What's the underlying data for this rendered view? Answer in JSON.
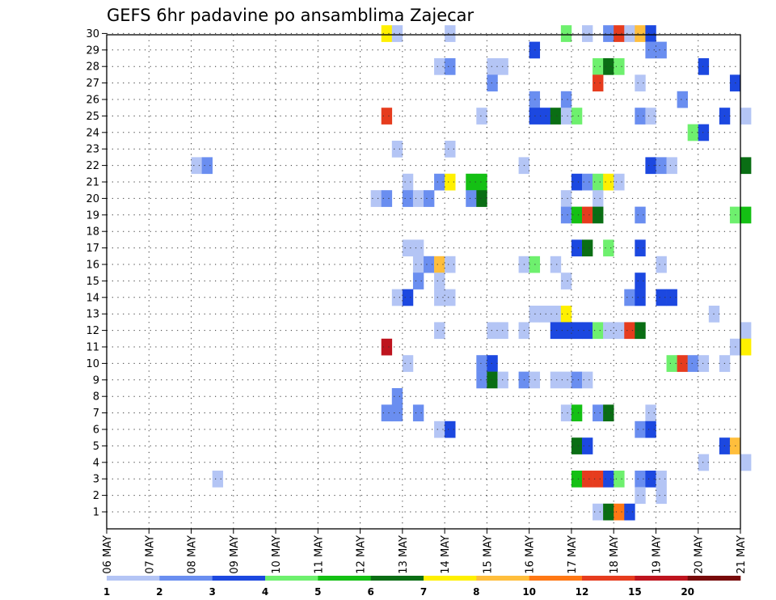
{
  "chart_data": {
    "type": "heatmap",
    "title": "GEFS 6hr padavine po ansamblima Zajecar",
    "x_tick_labels": [
      "06 MAY",
      "07 MAY",
      "08 MAY",
      "09 MAY",
      "10 MAY",
      "11 MAY",
      "12 MAY",
      "13 MAY",
      "14 MAY",
      "15 MAY",
      "16 MAY",
      "17 MAY",
      "18 MAY",
      "19 MAY",
      "20 MAY",
      "21 MAY"
    ],
    "y_tick_labels": [
      "1",
      "2",
      "3",
      "4",
      "5",
      "6",
      "7",
      "8",
      "9",
      "10",
      "11",
      "12",
      "13",
      "14",
      "15",
      "16",
      "17",
      "18",
      "19",
      "20",
      "21",
      "22",
      "23",
      "24",
      "25",
      "26",
      "27",
      "28",
      "29",
      "30"
    ],
    "x_range_days": [
      0,
      15
    ],
    "step_hours": 6,
    "grid": true,
    "colorbar": {
      "labels": [
        "1",
        "2",
        "3",
        "4",
        "5",
        "6",
        "7",
        "8",
        "10",
        "12",
        "15",
        "20"
      ],
      "colors": [
        "#b4c5f5",
        "#6a8ef0",
        "#1c48e0",
        "#6ef06e",
        "#14c014",
        "#0a6e14",
        "#fff000",
        "#ffbe3c",
        "#ff7814",
        "#e63c1e",
        "#be141e",
        "#780a0a"
      ]
    },
    "cells": [
      [
        30,
        26,
        6
      ],
      [
        30,
        27,
        0
      ],
      [
        30,
        32,
        0
      ],
      [
        30,
        43,
        3
      ],
      [
        30,
        45,
        0
      ],
      [
        30,
        47,
        1
      ],
      [
        30,
        48,
        9
      ],
      [
        30,
        49,
        0
      ],
      [
        30,
        50,
        7
      ],
      [
        30,
        51,
        2
      ],
      [
        29,
        40,
        2
      ],
      [
        29,
        51,
        1
      ],
      [
        29,
        52,
        1
      ],
      [
        28,
        31,
        0
      ],
      [
        28,
        32,
        1
      ],
      [
        28,
        36,
        0
      ],
      [
        28,
        37,
        0
      ],
      [
        28,
        46,
        3
      ],
      [
        28,
        47,
        5
      ],
      [
        28,
        48,
        3
      ],
      [
        28,
        56,
        2
      ],
      [
        27,
        36,
        1
      ],
      [
        27,
        46,
        9
      ],
      [
        27,
        50,
        0
      ],
      [
        27,
        59,
        2
      ],
      [
        26,
        40,
        1
      ],
      [
        26,
        43,
        1
      ],
      [
        26,
        54,
        1
      ],
      [
        25,
        26,
        9
      ],
      [
        25,
        35,
        0
      ],
      [
        25,
        40,
        2
      ],
      [
        25,
        41,
        2
      ],
      [
        25,
        42,
        5
      ],
      [
        25,
        43,
        0
      ],
      [
        25,
        44,
        3
      ],
      [
        25,
        50,
        1
      ],
      [
        25,
        51,
        0
      ],
      [
        25,
        58,
        2
      ],
      [
        25,
        60,
        0
      ],
      [
        24,
        55,
        3
      ],
      [
        24,
        56,
        2
      ],
      [
        23,
        27,
        0
      ],
      [
        23,
        32,
        0
      ],
      [
        22,
        8,
        0
      ],
      [
        22,
        9,
        1
      ],
      [
        22,
        39,
        0
      ],
      [
        22,
        51,
        2
      ],
      [
        22,
        52,
        1
      ],
      [
        22,
        53,
        0
      ],
      [
        22,
        60,
        5
      ],
      [
        21,
        28,
        0
      ],
      [
        21,
        31,
        1
      ],
      [
        21,
        32,
        6
      ],
      [
        21,
        34,
        4
      ],
      [
        21,
        35,
        4
      ],
      [
        21,
        44,
        2
      ],
      [
        21,
        45,
        1
      ],
      [
        21,
        46,
        3
      ],
      [
        21,
        47,
        6
      ],
      [
        21,
        48,
        0
      ],
      [
        20,
        25,
        0
      ],
      [
        20,
        26,
        1
      ],
      [
        20,
        28,
        1
      ],
      [
        20,
        29,
        0
      ],
      [
        20,
        30,
        1
      ],
      [
        20,
        34,
        1
      ],
      [
        20,
        35,
        5
      ],
      [
        20,
        43,
        0
      ],
      [
        20,
        46,
        0
      ],
      [
        19,
        43,
        1
      ],
      [
        19,
        44,
        4
      ],
      [
        19,
        45,
        9
      ],
      [
        19,
        46,
        5
      ],
      [
        19,
        50,
        1
      ],
      [
        19,
        59,
        3
      ],
      [
        19,
        60,
        4
      ],
      [
        17,
        28,
        0
      ],
      [
        17,
        29,
        0
      ],
      [
        17,
        44,
        2
      ],
      [
        17,
        45,
        5
      ],
      [
        17,
        47,
        3
      ],
      [
        17,
        50,
        2
      ],
      [
        16,
        29,
        0
      ],
      [
        16,
        30,
        1
      ],
      [
        16,
        31,
        7
      ],
      [
        16,
        32,
        0
      ],
      [
        16,
        39,
        0
      ],
      [
        16,
        40,
        3
      ],
      [
        16,
        42,
        0
      ],
      [
        16,
        52,
        0
      ],
      [
        15,
        29,
        1
      ],
      [
        15,
        31,
        0
      ],
      [
        15,
        43,
        0
      ],
      [
        15,
        50,
        2
      ],
      [
        14,
        27,
        0
      ],
      [
        14,
        28,
        2
      ],
      [
        14,
        31,
        0
      ],
      [
        14,
        32,
        0
      ],
      [
        14,
        49,
        1
      ],
      [
        14,
        50,
        2
      ],
      [
        14,
        52,
        2
      ],
      [
        14,
        53,
        2
      ],
      [
        13,
        40,
        0
      ],
      [
        13,
        41,
        0
      ],
      [
        13,
        42,
        0
      ],
      [
        13,
        43,
        6
      ],
      [
        13,
        57,
        0
      ],
      [
        12,
        31,
        0
      ],
      [
        12,
        36,
        0
      ],
      [
        12,
        37,
        0
      ],
      [
        12,
        39,
        0
      ],
      [
        12,
        42,
        2
      ],
      [
        12,
        43,
        2
      ],
      [
        12,
        44,
        2
      ],
      [
        12,
        45,
        2
      ],
      [
        12,
        46,
        3
      ],
      [
        12,
        47,
        0
      ],
      [
        12,
        48,
        0
      ],
      [
        12,
        49,
        9
      ],
      [
        12,
        50,
        5
      ],
      [
        12,
        60,
        0
      ],
      [
        11,
        26,
        10
      ],
      [
        11,
        59,
        0
      ],
      [
        11,
        60,
        6
      ],
      [
        10,
        28,
        0
      ],
      [
        10,
        35,
        1
      ],
      [
        10,
        36,
        2
      ],
      [
        10,
        53,
        3
      ],
      [
        10,
        54,
        9
      ],
      [
        10,
        55,
        1
      ],
      [
        10,
        56,
        0
      ],
      [
        10,
        58,
        0
      ],
      [
        9,
        35,
        1
      ],
      [
        9,
        36,
        5
      ],
      [
        9,
        37,
        0
      ],
      [
        9,
        39,
        1
      ],
      [
        9,
        40,
        0
      ],
      [
        9,
        42,
        0
      ],
      [
        9,
        43,
        0
      ],
      [
        9,
        44,
        1
      ],
      [
        9,
        45,
        0
      ],
      [
        8,
        27,
        1
      ],
      [
        7,
        26,
        1
      ],
      [
        7,
        27,
        1
      ],
      [
        7,
        29,
        1
      ],
      [
        7,
        43,
        0
      ],
      [
        7,
        44,
        4
      ],
      [
        7,
        46,
        1
      ],
      [
        7,
        47,
        5
      ],
      [
        7,
        51,
        0
      ],
      [
        6,
        31,
        0
      ],
      [
        6,
        32,
        2
      ],
      [
        6,
        50,
        1
      ],
      [
        6,
        51,
        2
      ],
      [
        5,
        44,
        5
      ],
      [
        5,
        45,
        2
      ],
      [
        5,
        58,
        2
      ],
      [
        5,
        59,
        7
      ],
      [
        4,
        56,
        0
      ],
      [
        4,
        60,
        0
      ],
      [
        3,
        10,
        0
      ],
      [
        3,
        44,
        4
      ],
      [
        3,
        45,
        9
      ],
      [
        3,
        46,
        9
      ],
      [
        3,
        47,
        2
      ],
      [
        3,
        48,
        3
      ],
      [
        3,
        50,
        1
      ],
      [
        3,
        51,
        2
      ],
      [
        3,
        52,
        0
      ],
      [
        2,
        50,
        0
      ],
      [
        2,
        52,
        0
      ],
      [
        1,
        46,
        0
      ],
      [
        1,
        47,
        5
      ],
      [
        1,
        48,
        8
      ],
      [
        1,
        49,
        2
      ]
    ]
  }
}
